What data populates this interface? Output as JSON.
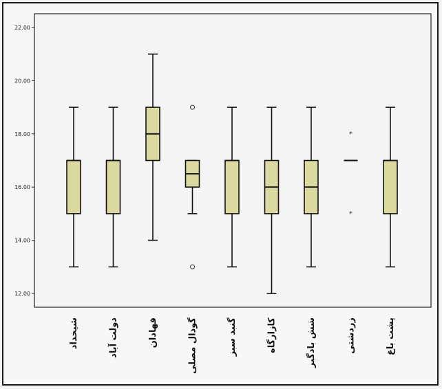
{
  "chart_data": {
    "type": "boxplot",
    "title": "",
    "xlabel": "",
    "ylabel": "",
    "ylim": [
      11.5,
      22.3
    ],
    "yticks": [
      12,
      14,
      16,
      18,
      20,
      22
    ],
    "ytick_labels": [
      "12.00",
      "14.00",
      "16.00",
      "18.00",
      "20.00",
      "22.00"
    ],
    "grid": false,
    "box_color": "#d9d9a0",
    "categories": [
      "شیخداد",
      "دولت آباد",
      "فهادان",
      "گودال مصلی",
      "گنبد سبز",
      "کازارگاه",
      "شش بادگیر",
      "زردشتی",
      "پشت باغ"
    ],
    "series": [
      {
        "category": "شیخداد",
        "whisker_low": 13,
        "q1": 15,
        "median": 17,
        "q3": 17,
        "whisker_high": 19,
        "outliers": []
      },
      {
        "category": "دولت آباد",
        "whisker_low": 13,
        "q1": 15,
        "median": 17,
        "q3": 17,
        "whisker_high": 19,
        "outliers": []
      },
      {
        "category": "فهادان",
        "whisker_low": 14,
        "q1": 17,
        "median": 18,
        "q3": 19,
        "whisker_high": 21,
        "outliers": []
      },
      {
        "category": "گودال مصلی",
        "whisker_low": 15,
        "q1": 16,
        "median": 16.5,
        "q3": 17,
        "whisker_high": 17,
        "outliers": [
          19,
          13
        ]
      },
      {
        "category": "گنبد سبز",
        "whisker_low": 13,
        "q1": 15,
        "median": 17,
        "q3": 17,
        "whisker_high": 19,
        "outliers": []
      },
      {
        "category": "کازارگاه",
        "whisker_low": 12,
        "q1": 15,
        "median": 16,
        "q3": 17,
        "whisker_high": 19,
        "outliers": []
      },
      {
        "category": "شش بادگیر",
        "whisker_low": 13,
        "q1": 15,
        "median": 16,
        "q3": 17,
        "whisker_high": 19,
        "outliers": []
      },
      {
        "category": "زردشتی",
        "whisker_low": 17,
        "q1": 17,
        "median": 17,
        "q3": 17,
        "whisker_high": 17,
        "outliers": [
          18,
          15
        ]
      },
      {
        "category": "پشت باغ",
        "whisker_low": 13,
        "q1": 15,
        "median": 17,
        "q3": 17,
        "whisker_high": 19,
        "outliers": []
      }
    ]
  }
}
